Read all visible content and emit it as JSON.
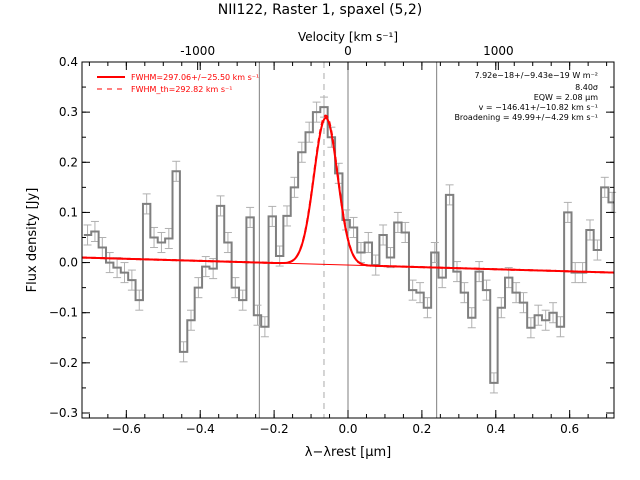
{
  "chart_data": {
    "type": "line",
    "title": "NII122, Raster 1, spaxel (5,2)",
    "top_axis_label": "Velocity [km s⁻¹]",
    "top_ticks": [
      -1000,
      0,
      1000
    ],
    "xlabel": "λ−λrest [μm]",
    "ylabel": "Flux density [Jy]",
    "xlim": [
      -0.72,
      0.72
    ],
    "ylim": [
      -0.31,
      0.4
    ],
    "xticks": [
      "−0.6",
      "−0.4",
      "−0.2",
      "0.0",
      "0.2",
      "0.4",
      "0.6"
    ],
    "yticks": [
      "−0.3",
      "−0.2",
      "−0.1",
      "0.0",
      "0.1",
      "0.2",
      "0.3",
      "0.4"
    ],
    "vlines": [
      -0.24,
      0.0,
      0.24
    ],
    "dashed_vline": -0.065,
    "legend": {
      "fwhm": "FWHM=297.06+/−25.50 km s⁻¹",
      "fwhm_th": "FWHM_th=292.82 km s⁻¹"
    },
    "annotations": [
      "7.92e−18+/−9.43e−19 W m⁻²",
      "8.40σ",
      "EQW = 2.08 μm",
      "v = −146.41+/−10.82 km s⁻¹",
      "Broadening = 49.99+/−4.29 km s⁻¹"
    ],
    "spectrum": {
      "x": [
        -0.705,
        -0.685,
        -0.665,
        -0.645,
        -0.625,
        -0.605,
        -0.585,
        -0.565,
        -0.545,
        -0.525,
        -0.505,
        -0.485,
        -0.465,
        -0.445,
        -0.425,
        -0.405,
        -0.385,
        -0.365,
        -0.345,
        -0.325,
        -0.305,
        -0.285,
        -0.265,
        -0.245,
        -0.225,
        -0.205,
        -0.185,
        -0.165,
        -0.145,
        -0.125,
        -0.105,
        -0.085,
        -0.065,
        -0.045,
        -0.025,
        -0.005,
        0.015,
        0.035,
        0.055,
        0.075,
        0.095,
        0.115,
        0.135,
        0.155,
        0.175,
        0.195,
        0.215,
        0.235,
        0.255,
        0.275,
        0.295,
        0.315,
        0.335,
        0.355,
        0.375,
        0.395,
        0.415,
        0.435,
        0.455,
        0.475,
        0.495,
        0.515,
        0.535,
        0.555,
        0.575,
        0.595,
        0.615,
        0.635,
        0.655,
        0.675,
        0.695,
        0.715
      ],
      "flux": [
        0.055,
        0.062,
        0.03,
        0.0,
        -0.01,
        -0.02,
        -0.035,
        -0.075,
        0.117,
        0.05,
        0.04,
        0.048,
        0.182,
        -0.178,
        -0.115,
        -0.05,
        -0.008,
        -0.012,
        0.113,
        0.04,
        -0.05,
        -0.075,
        0.09,
        -0.105,
        -0.128,
        0.092,
        0.013,
        0.093,
        0.15,
        0.22,
        0.26,
        0.3,
        0.31,
        0.25,
        0.178,
        0.085,
        0.07,
        0.02,
        0.04,
        -0.005,
        0.055,
        0.01,
        0.08,
        0.06,
        -0.055,
        -0.06,
        -0.09,
        0.02,
        -0.03,
        0.135,
        -0.018,
        -0.06,
        -0.11,
        -0.018,
        -0.055,
        -0.24,
        -0.09,
        -0.03,
        -0.06,
        -0.08,
        -0.13,
        -0.105,
        -0.115,
        -0.1,
        -0.128,
        0.1,
        -0.02,
        -0.02,
        0.065,
        0.025,
        0.15,
        0.12
      ],
      "error": 0.02
    },
    "fit": {
      "baseline_start": 0.01,
      "baseline_end": -0.02,
      "amplitude": 0.297,
      "center": -0.06,
      "sigma": 0.032
    },
    "colors": {
      "spectrum": "#7f7f7f",
      "fit": "#ff0000",
      "fit_th": "#ff0000",
      "vlines": "#7f7f7f",
      "axes": "#000000"
    }
  }
}
